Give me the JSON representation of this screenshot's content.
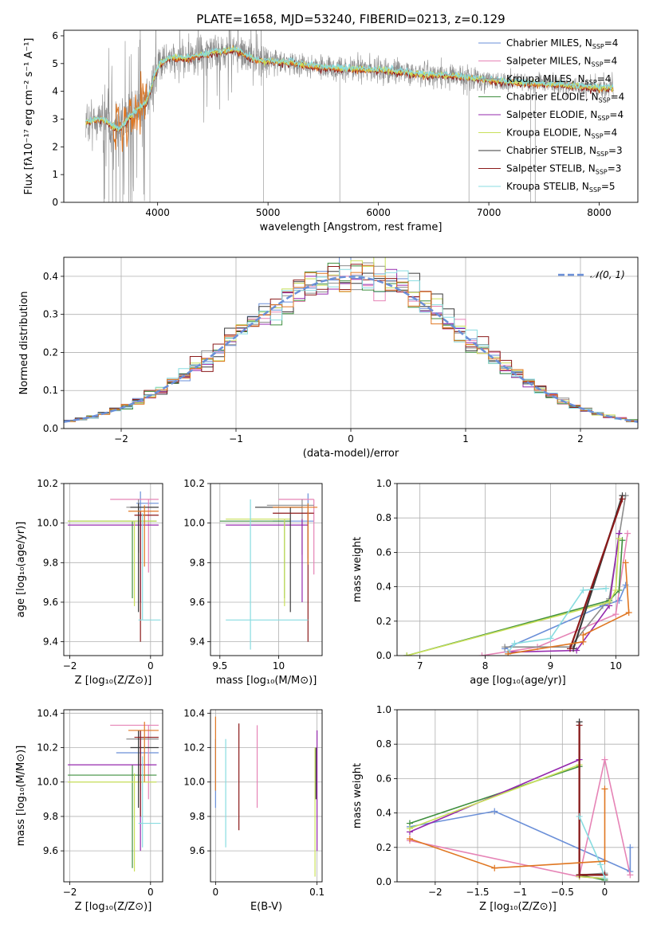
{
  "figure": {
    "title": "PLATE=1658, MJD=53240, FIBERID=0213, z=0.129"
  },
  "colors": {
    "c0": "#6a8fd8",
    "c1": "#e684b6",
    "c2": "#8c8c8c",
    "c3": "#3f8f3f",
    "c4": "#9528ad",
    "c5": "#c9e05a",
    "c6": "#3a3a3a",
    "c7": "#8b1a1a",
    "c8": "#88dce0",
    "orange": "#e07722",
    "normal": "#6a8fd8"
  },
  "chart_data": [
    {
      "id": "spectrum",
      "type": "line",
      "xlabel": "wavelength [Angstrom, rest frame]",
      "ylabel": "Flux [fλ10⁻¹⁷ erg cm⁻² s⁻¹ A⁻¹]",
      "xlim": [
        3150,
        8350
      ],
      "ylim": [
        0,
        6.2
      ],
      "xticks": [
        4000,
        5000,
        6000,
        7000,
        8000
      ],
      "yticks": [
        0,
        1,
        2,
        3,
        4,
        5,
        6
      ],
      "legend_position": "right",
      "legend": [
        {
          "label": "Chabrier MILES, N_SSP=4",
          "color": "c0"
        },
        {
          "label": "Salpeter MILES, N_SSP=4",
          "color": "c1"
        },
        {
          "label": "Kroupa MILES, N_SSP=4",
          "color": "c2"
        },
        {
          "label": "Chabrier ELODIE, N_SSP=4",
          "color": "c3"
        },
        {
          "label": "Salpeter ELODIE, N_SSP=4",
          "color": "c4"
        },
        {
          "label": "Kroupa ELODIE, N_SSP=4",
          "color": "c5"
        },
        {
          "label": "Chabrier STELIB, N_SSP=3",
          "color": "c6"
        },
        {
          "label": "Salpeter STELIB, N_SSP=3",
          "color": "c7"
        },
        {
          "label": "Kroupa STELIB, N_SSP=5",
          "color": "c8"
        }
      ],
      "model_trend": [
        [
          3350,
          2.9
        ],
        [
          3500,
          3.0
        ],
        [
          3650,
          2.6
        ],
        [
          3800,
          3.3
        ],
        [
          3900,
          3.6
        ],
        [
          4000,
          4.9
        ],
        [
          4100,
          5.2
        ],
        [
          4300,
          5.2
        ],
        [
          4500,
          5.4
        ],
        [
          4700,
          5.5
        ],
        [
          4900,
          5.1
        ],
        [
          5200,
          5.05
        ],
        [
          5500,
          4.85
        ],
        [
          5800,
          4.8
        ],
        [
          6100,
          4.75
        ],
        [
          6400,
          4.6
        ],
        [
          6700,
          4.55
        ],
        [
          7000,
          4.4
        ],
        [
          7300,
          4.3
        ],
        [
          7600,
          4.25
        ],
        [
          7900,
          4.15
        ],
        [
          8130,
          4.1
        ]
      ]
    },
    {
      "id": "residuals",
      "type": "histogram",
      "xlabel": "(data-model)/error",
      "ylabel": "Normed distribution",
      "xlim": [
        -2.5,
        2.5
      ],
      "ylim": [
        0,
        0.45
      ],
      "xticks": [
        -2,
        -1,
        0,
        1,
        2
      ],
      "yticks": [
        0.0,
        0.1,
        0.2,
        0.3,
        0.4
      ],
      "legend": [
        {
          "label": "𝒩(0, 1)",
          "color": "normal"
        }
      ],
      "legend_position": "top-right",
      "bin_width": 0.1
    },
    {
      "id": "age-vs-Z",
      "type": "errorbar",
      "xlabel": "Z [log₁₀(Z/Z⊙)]",
      "ylabel": "age  [log₁₀(age/yr)]",
      "xlim": [
        -2.15,
        0.3
      ],
      "ylim": [
        9.33,
        10.2
      ],
      "xticks": [
        -2,
        0
      ],
      "yticks": [
        9.4,
        9.6,
        9.8,
        10.0,
        10.2
      ],
      "points": [
        {
          "c": "c0",
          "x": -0.25,
          "y": 10.1,
          "xl": -0.35,
          "xh": 0.2,
          "yl": 9.8,
          "yh": 10.16
        },
        {
          "c": "c1",
          "x": -0.05,
          "y": 10.12,
          "xl": -1.0,
          "xh": 0.2,
          "yl": 9.75,
          "yh": 10.12
        },
        {
          "c": "c2",
          "x": -0.3,
          "y": 10.08,
          "xl": -0.6,
          "xh": 0.2,
          "yl": 9.85,
          "yh": 10.12
        },
        {
          "c": "c3",
          "x": -0.45,
          "y": 10.01,
          "xl": -2.05,
          "xh": 0.15,
          "yl": 9.62,
          "yh": 10.01
        },
        {
          "c": "c4",
          "x": -0.25,
          "y": 9.99,
          "xl": -2.05,
          "xh": 0.2,
          "yl": 9.6,
          "yh": 10.05
        },
        {
          "c": "c5",
          "x": -0.4,
          "y": 10.01,
          "xl": -2.05,
          "xh": 0.15,
          "yl": 9.58,
          "yh": 10.01
        },
        {
          "c": "c6",
          "x": -0.3,
          "y": 10.08,
          "xl": -0.5,
          "xh": 0.2,
          "yl": 9.55,
          "yh": 10.1
        },
        {
          "c": "c7",
          "x": -0.25,
          "y": 10.04,
          "xl": -0.4,
          "xh": 0.2,
          "yl": 9.4,
          "yh": 10.06
        },
        {
          "c": "c8",
          "x": -0.2,
          "y": 9.51,
          "xl": -0.3,
          "xh": 0.25,
          "yl": 9.51,
          "yh": 10.05
        },
        {
          "c": "orange",
          "x": -0.15,
          "y": 10.06,
          "xl": -0.55,
          "xh": 0.2,
          "yl": 9.78,
          "yh": 10.09
        }
      ]
    },
    {
      "id": "age-vs-mass",
      "type": "errorbar",
      "xlabel": "mass [log₁₀(M/M⊙)]",
      "ylabel": "",
      "xlim": [
        9.42,
        10.37
      ],
      "ylim": [
        9.33,
        10.2
      ],
      "xticks": [
        9.5,
        10.0
      ],
      "yticks": [
        9.4,
        9.6,
        9.8,
        10.0,
        10.2
      ],
      "points": [
        {
          "c": "c0",
          "x": 10.25,
          "y": 10.01,
          "xl": 9.95,
          "xh": 10.3,
          "yl": 9.82,
          "yh": 10.15
        },
        {
          "c": "c1",
          "x": 10.3,
          "y": 10.12,
          "xl": 10.0,
          "xh": 10.3,
          "yl": 9.74,
          "yh": 10.12
        },
        {
          "c": "c2",
          "x": 10.2,
          "y": 10.09,
          "xl": 9.9,
          "xh": 10.3,
          "yl": 9.84,
          "yh": 10.12
        },
        {
          "c": "c3",
          "x": 10.05,
          "y": 10.01,
          "xl": 9.5,
          "xh": 10.1,
          "yl": 9.62,
          "yh": 10.01
        },
        {
          "c": "c4",
          "x": 10.2,
          "y": 9.99,
          "xl": 9.55,
          "xh": 10.25,
          "yl": 9.6,
          "yh": 10.02
        },
        {
          "c": "c5",
          "x": 10.05,
          "y": 10.02,
          "xl": 9.55,
          "xh": 10.1,
          "yl": 9.58,
          "yh": 10.02
        },
        {
          "c": "c6",
          "x": 10.1,
          "y": 10.08,
          "xl": 9.8,
          "xh": 10.2,
          "yl": 9.55,
          "yh": 10.08
        },
        {
          "c": "c7",
          "x": 10.25,
          "y": 10.05,
          "xl": 9.95,
          "xh": 10.3,
          "yl": 9.4,
          "yh": 10.06
        },
        {
          "c": "c8",
          "x": 9.76,
          "y": 9.51,
          "xl": 9.55,
          "xh": 10.25,
          "yl": 9.36,
          "yh": 10.12
        },
        {
          "c": "orange",
          "x": 10.25,
          "y": 10.08,
          "xl": 9.95,
          "xh": 10.33,
          "yl": 9.79,
          "yh": 10.1
        }
      ]
    },
    {
      "id": "mass-vs-Z",
      "type": "errorbar",
      "xlabel": "Z [log₁₀(Z/Z⊙)]",
      "ylabel": "mass [log₁₀(M/M⊙)]",
      "xlim": [
        -2.15,
        0.3
      ],
      "ylim": [
        9.42,
        10.42
      ],
      "xticks": [
        -2,
        0
      ],
      "yticks": [
        9.6,
        9.8,
        10.0,
        10.2,
        10.4
      ],
      "points": [
        {
          "c": "c0",
          "x": -0.25,
          "y": 10.17,
          "xl": -0.85,
          "xh": 0.2,
          "yl": 9.95,
          "yh": 10.3
        },
        {
          "c": "c1",
          "x": -0.05,
          "y": 10.33,
          "xl": -1.0,
          "xh": 0.2,
          "yl": 9.9,
          "yh": 10.33
        },
        {
          "c": "c2",
          "x": -0.3,
          "y": 10.25,
          "xl": -0.6,
          "xh": 0.2,
          "yl": 10.0,
          "yh": 10.3
        },
        {
          "c": "c3",
          "x": -0.45,
          "y": 10.04,
          "xl": -2.05,
          "xh": 0.15,
          "yl": 9.5,
          "yh": 10.1
        },
        {
          "c": "c4",
          "x": -0.25,
          "y": 10.1,
          "xl": -2.05,
          "xh": 0.15,
          "yl": 9.6,
          "yh": 10.25
        },
        {
          "c": "c5",
          "x": -0.4,
          "y": 10.0,
          "xl": -2.05,
          "xh": 0.15,
          "yl": 9.48,
          "yh": 10.05
        },
        {
          "c": "c6",
          "x": -0.3,
          "y": 10.2,
          "xl": -0.5,
          "xh": 0.2,
          "yl": 9.85,
          "yh": 10.3
        },
        {
          "c": "c7",
          "x": -0.25,
          "y": 10.26,
          "xl": -0.4,
          "xh": 0.2,
          "yl": 9.8,
          "yh": 10.3
        },
        {
          "c": "c8",
          "x": -0.2,
          "y": 9.76,
          "xl": -0.3,
          "xh": 0.25,
          "yl": 9.62,
          "yh": 10.15
        },
        {
          "c": "orange",
          "x": -0.15,
          "y": 10.3,
          "xl": -0.55,
          "xh": 0.2,
          "yl": 10.0,
          "yh": 10.35
        }
      ]
    },
    {
      "id": "mass-vs-EBV",
      "type": "errorbar",
      "xlabel": "E(B-V)",
      "ylabel": "",
      "xlim": [
        -0.005,
        0.105
      ],
      "ylim": [
        9.42,
        10.42
      ],
      "xticks": [
        0.0,
        0.1
      ],
      "yticks": [
        9.6,
        9.8,
        10.0,
        10.2,
        10.4
      ],
      "points": [
        {
          "c": "c0",
          "x": 0.0,
          "y": 10.0,
          "yl": 9.85,
          "yh": 10.25
        },
        {
          "c": "orange",
          "x": 0.0,
          "y": 10.2,
          "yl": 9.95,
          "yh": 10.38
        },
        {
          "c": "c8",
          "x": 0.01,
          "y": 9.9,
          "yl": 9.62,
          "yh": 10.25
        },
        {
          "c": "c7",
          "x": 0.023,
          "y": 10.0,
          "yl": 9.72,
          "yh": 10.34
        },
        {
          "c": "c1",
          "x": 0.041,
          "y": 10.1,
          "yl": 9.85,
          "yh": 10.33
        },
        {
          "c": "c5",
          "x": 0.098,
          "y": 9.7,
          "yl": 9.45,
          "yh": 10.2
        },
        {
          "c": "c4",
          "x": 0.1,
          "y": 9.9,
          "yl": 9.6,
          "yh": 10.3
        },
        {
          "c": "c6",
          "x": 0.099,
          "y": 10.1,
          "yl": 9.9,
          "yh": 10.2
        }
      ]
    },
    {
      "id": "weight-vs-age",
      "type": "line",
      "xlabel": "age  [log₁₀(age/yr)]",
      "ylabel": "mass weight",
      "xlim": [
        6.65,
        10.35
      ],
      "ylim": [
        0,
        1.0
      ],
      "xticks": [
        7,
        8,
        9,
        10
      ],
      "yticks": [
        0.0,
        0.2,
        0.4,
        0.6,
        0.8,
        1.0
      ],
      "series": [
        {
          "c": "c0",
          "x": [
            8.3,
            9.8,
            10.05,
            10.15
          ],
          "y": [
            0.04,
            0.29,
            0.32,
            0.41
          ]
        },
        {
          "c": "c1",
          "x": [
            7.95,
            8.8,
            10.0,
            10.18
          ],
          "y": [
            0.0,
            0.05,
            0.24,
            0.71
          ]
        },
        {
          "c": "c2",
          "x": [
            8.3,
            9.3,
            9.9,
            10.15
          ],
          "y": [
            0.05,
            0.05,
            0.33,
            0.93
          ]
        },
        {
          "c": "c3",
          "x": [
            6.8,
            9.9,
            10.05,
            10.1
          ],
          "y": [
            0.0,
            0.32,
            0.38,
            0.67
          ]
        },
        {
          "c": "c4",
          "x": [
            8.35,
            9.4,
            9.9,
            10.05
          ],
          "y": [
            0.02,
            0.03,
            0.29,
            0.71
          ]
        },
        {
          "c": "c5",
          "x": [
            6.8,
            9.9,
            10.0,
            10.05
          ],
          "y": [
            0.0,
            0.31,
            0.38,
            0.68
          ]
        },
        {
          "c": "c6",
          "x": [
            9.35,
            10.1
          ],
          "y": [
            0.04,
            0.93
          ]
        },
        {
          "c": "c7",
          "x": [
            9.3,
            10.1
          ],
          "y": [
            0.04,
            0.91
          ]
        },
        {
          "c": "c8",
          "x": [
            8.35,
            8.45,
            9.0,
            9.5,
            9.85
          ],
          "y": [
            0.02,
            0.07,
            0.1,
            0.38,
            0.39
          ]
        },
        {
          "c": "orange",
          "x": [
            8.35,
            9.5,
            9.5,
            10.2,
            10.15
          ],
          "y": [
            0.01,
            0.08,
            0.12,
            0.25,
            0.54
          ]
        }
      ]
    },
    {
      "id": "weight-vs-Z",
      "type": "line",
      "xlabel": "Z [log₁₀(Z/Z⊙)]",
      "ylabel": "mass weight",
      "xlim": [
        -2.45,
        0.4
      ],
      "ylim": [
        0,
        1.0
      ],
      "xticks": [
        -2.0,
        -1.5,
        -1.0,
        -0.5,
        0.0
      ],
      "yticks": [
        0.0,
        0.2,
        0.4,
        0.6,
        0.8,
        1.0
      ],
      "series": [
        {
          "c": "c0",
          "x": [
            -2.3,
            -1.3,
            0.3,
            0.3
          ],
          "y": [
            0.32,
            0.41,
            0.06,
            0.2
          ]
        },
        {
          "c": "c1",
          "x": [
            -2.3,
            -0.3,
            0.0,
            0.3
          ],
          "y": [
            0.24,
            0.03,
            0.71,
            0.04
          ]
        },
        {
          "c": "c2",
          "x": [
            -0.3,
            -0.3,
            0.0
          ],
          "y": [
            0.93,
            0.04,
            0.05
          ]
        },
        {
          "c": "c3",
          "x": [
            -2.3,
            -0.3,
            -0.3,
            0.0
          ],
          "y": [
            0.34,
            0.67,
            0.04,
            0.01
          ]
        },
        {
          "c": "c4",
          "x": [
            -2.3,
            -0.3,
            -0.3,
            0.0
          ],
          "y": [
            0.29,
            0.71,
            0.03,
            0.02
          ]
        },
        {
          "c": "c5",
          "x": [
            -2.3,
            -0.3,
            -0.3,
            0.0
          ],
          "y": [
            0.31,
            0.68,
            0.03,
            0.02
          ]
        },
        {
          "c": "c6",
          "x": [
            -0.3,
            -0.3,
            0.0
          ],
          "y": [
            0.93,
            0.04,
            0.04
          ]
        },
        {
          "c": "c7",
          "x": [
            -0.3,
            -0.3,
            0.0
          ],
          "y": [
            0.91,
            0.04,
            0.04
          ]
        },
        {
          "c": "c8",
          "x": [
            -0.3,
            -0.05,
            0.0
          ],
          "y": [
            0.38,
            0.1,
            0.02
          ]
        },
        {
          "c": "orange",
          "x": [
            -2.3,
            -1.3,
            0.0,
            0.0
          ],
          "y": [
            0.25,
            0.08,
            0.12,
            0.54
          ]
        }
      ]
    }
  ]
}
